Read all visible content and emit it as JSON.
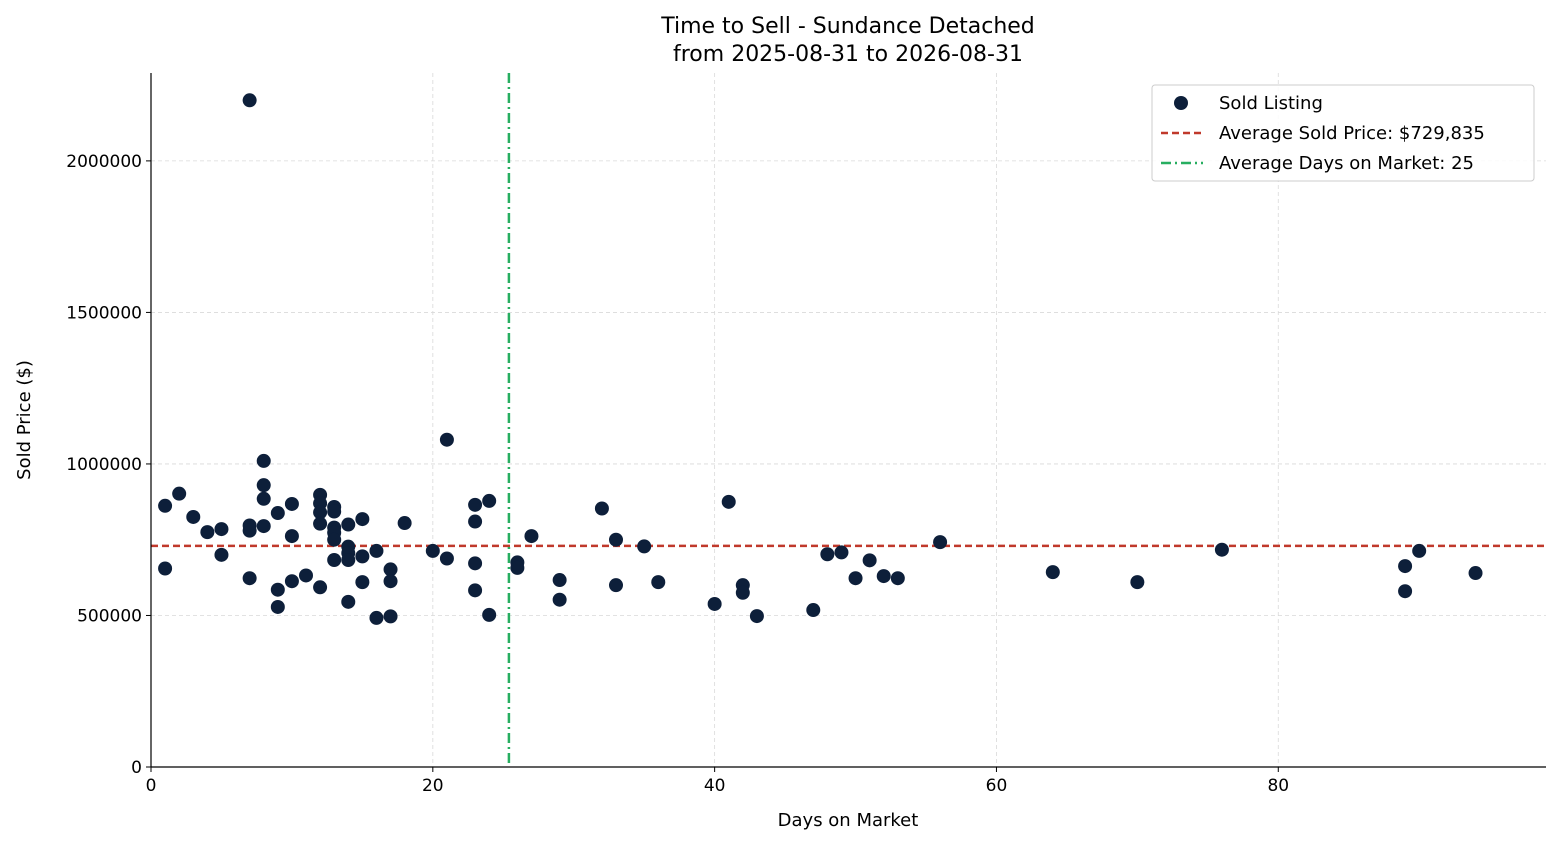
{
  "chart_data": {
    "type": "scatter",
    "title": "Time to Sell - Sundance Detached",
    "subtitle": "from 2025-08-31 to 2026-08-31",
    "xlabel": "Days on Market",
    "ylabel": "Sold Price ($)",
    "xlim": [
      0,
      99
    ],
    "ylim": [
      0,
      2290000
    ],
    "xticks": [
      0,
      20,
      40,
      60,
      80
    ],
    "xtick_labels": [
      "0",
      "20",
      "40",
      "60",
      "80"
    ],
    "yticks": [
      0,
      500000,
      1000000,
      1500000,
      2000000
    ],
    "ytick_labels": [
      "0",
      "500000",
      "1000000",
      "1500000",
      "2000000"
    ],
    "grid": true,
    "legend_position": "top-right",
    "legend": {
      "scatter_label": "Sold Listing",
      "avg_price_label": "Average Sold Price: $729,835",
      "avg_days_label": "Average Days on Market: 25"
    },
    "avg_price": 729835,
    "avg_days": 25.4,
    "colors": {
      "points": "#0d1f3a",
      "avg_price_line": "#c0392b",
      "avg_days_line": "#27ae60",
      "grid": "#d9d9d9"
    },
    "points": [
      {
        "x": 1,
        "y": 862000
      },
      {
        "x": 1,
        "y": 655000
      },
      {
        "x": 2,
        "y": 902000
      },
      {
        "x": 3,
        "y": 825000
      },
      {
        "x": 4,
        "y": 775000
      },
      {
        "x": 5,
        "y": 785000
      },
      {
        "x": 5,
        "y": 700000
      },
      {
        "x": 7,
        "y": 2200000
      },
      {
        "x": 7,
        "y": 797000
      },
      {
        "x": 7,
        "y": 780000
      },
      {
        "x": 7,
        "y": 623000
      },
      {
        "x": 8,
        "y": 1010000
      },
      {
        "x": 8,
        "y": 930000
      },
      {
        "x": 8,
        "y": 885000
      },
      {
        "x": 8,
        "y": 795000
      },
      {
        "x": 9,
        "y": 838000
      },
      {
        "x": 9,
        "y": 585000
      },
      {
        "x": 9,
        "y": 528000
      },
      {
        "x": 10,
        "y": 868000
      },
      {
        "x": 10,
        "y": 762000
      },
      {
        "x": 10,
        "y": 613000
      },
      {
        "x": 11,
        "y": 632000
      },
      {
        "x": 12,
        "y": 898000
      },
      {
        "x": 12,
        "y": 870000
      },
      {
        "x": 12,
        "y": 840000
      },
      {
        "x": 12,
        "y": 803000
      },
      {
        "x": 12,
        "y": 593000
      },
      {
        "x": 13,
        "y": 858000
      },
      {
        "x": 13,
        "y": 843000
      },
      {
        "x": 13,
        "y": 790000
      },
      {
        "x": 13,
        "y": 773000
      },
      {
        "x": 13,
        "y": 750000
      },
      {
        "x": 13,
        "y": 683000
      },
      {
        "x": 14,
        "y": 800000
      },
      {
        "x": 14,
        "y": 727000
      },
      {
        "x": 14,
        "y": 706000
      },
      {
        "x": 14,
        "y": 683000
      },
      {
        "x": 14,
        "y": 545000
      },
      {
        "x": 15,
        "y": 818000
      },
      {
        "x": 15,
        "y": 695000
      },
      {
        "x": 15,
        "y": 610000
      },
      {
        "x": 16,
        "y": 713000
      },
      {
        "x": 16,
        "y": 492000
      },
      {
        "x": 17,
        "y": 652000
      },
      {
        "x": 17,
        "y": 613000
      },
      {
        "x": 17,
        "y": 497000
      },
      {
        "x": 18,
        "y": 805000
      },
      {
        "x": 20,
        "y": 713000
      },
      {
        "x": 21,
        "y": 1080000
      },
      {
        "x": 21,
        "y": 688000
      },
      {
        "x": 23,
        "y": 865000
      },
      {
        "x": 23,
        "y": 810000
      },
      {
        "x": 23,
        "y": 672000
      },
      {
        "x": 23,
        "y": 583000
      },
      {
        "x": 24,
        "y": 878000
      },
      {
        "x": 24,
        "y": 502000
      },
      {
        "x": 26,
        "y": 675000
      },
      {
        "x": 26,
        "y": 657000
      },
      {
        "x": 27,
        "y": 762000
      },
      {
        "x": 29,
        "y": 617000
      },
      {
        "x": 29,
        "y": 552000
      },
      {
        "x": 32,
        "y": 853000
      },
      {
        "x": 33,
        "y": 750000
      },
      {
        "x": 33,
        "y": 600000
      },
      {
        "x": 35,
        "y": 728000
      },
      {
        "x": 36,
        "y": 610000
      },
      {
        "x": 40,
        "y": 538000
      },
      {
        "x": 41,
        "y": 875000
      },
      {
        "x": 42,
        "y": 600000
      },
      {
        "x": 42,
        "y": 575000
      },
      {
        "x": 43,
        "y": 498000
      },
      {
        "x": 47,
        "y": 518000
      },
      {
        "x": 48,
        "y": 702000
      },
      {
        "x": 49,
        "y": 708000
      },
      {
        "x": 50,
        "y": 623000
      },
      {
        "x": 51,
        "y": 682000
      },
      {
        "x": 52,
        "y": 630000
      },
      {
        "x": 53,
        "y": 623000
      },
      {
        "x": 56,
        "y": 742000
      },
      {
        "x": 64,
        "y": 643000
      },
      {
        "x": 70,
        "y": 610000
      },
      {
        "x": 76,
        "y": 717000
      },
      {
        "x": 89,
        "y": 663000
      },
      {
        "x": 89,
        "y": 580000
      },
      {
        "x": 90,
        "y": 713000
      },
      {
        "x": 94,
        "y": 640000
      }
    ]
  }
}
